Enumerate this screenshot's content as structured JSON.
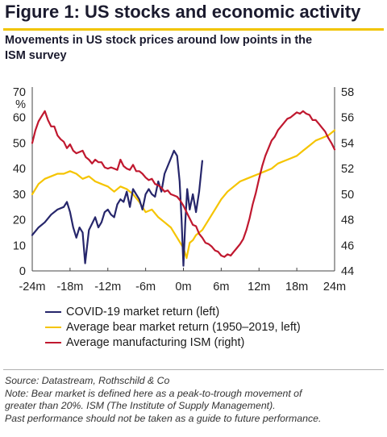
{
  "figure_title": "Figure 1: US stocks and economic activity",
  "subtitle_lines": [
    "Movements in US stock prices around low points in the",
    "ISM survey"
  ],
  "colors": {
    "accent": "#f1c400",
    "covid": "#26266b",
    "bear": "#f5c400",
    "ism": "#c0182f"
  },
  "chart_data": {
    "type": "line",
    "x_ticks": [
      "-24m",
      "-18m",
      "-12m",
      "-6m",
      "0m",
      "6m",
      "12m",
      "18m",
      "24m"
    ],
    "x_range": [
      -24,
      24
    ],
    "y_left_unit": "%",
    "y_left_range": [
      0,
      70
    ],
    "y_left_ticks": [
      "0",
      "10",
      "20",
      "30",
      "40",
      "50",
      "60",
      "70"
    ],
    "y_right_range": [
      44,
      58
    ],
    "y_right_ticks": [
      "44",
      "46",
      "48",
      "50",
      "52",
      "54",
      "56",
      "58"
    ],
    "grid": false,
    "legend_position": "bottom",
    "series": [
      {
        "name": "COVID-19 market return (left)",
        "axis": "left",
        "color": "#26266b",
        "x": [
          -24,
          -23,
          -22,
          -21,
          -20,
          -19,
          -18.5,
          -18,
          -17.5,
          -17,
          -16.5,
          -16,
          -15.6,
          -15,
          -14,
          -13.5,
          -13,
          -12.5,
          -12,
          -11.5,
          -11,
          -10.5,
          -10,
          -9.5,
          -9,
          -8.5,
          -8,
          -7.5,
          -7,
          -6.5,
          -6,
          -5.5,
          -5,
          -4.5,
          -4,
          -3.5,
          -3,
          -2.5,
          -2,
          -1.5,
          -1,
          -0.6,
          -0.3,
          0,
          0.3,
          0.6,
          1,
          1.5,
          2,
          2.5,
          3
        ],
        "values": [
          14,
          17,
          19,
          22,
          24,
          25,
          27,
          23,
          17,
          13,
          17,
          15,
          3,
          16,
          21,
          17,
          19,
          23,
          24,
          22,
          21,
          26,
          28,
          27,
          31,
          25,
          32,
          30,
          28,
          24,
          30,
          32,
          30,
          29,
          35,
          31,
          38,
          41,
          44,
          47,
          45,
          35,
          20,
          2,
          19,
          32,
          24,
          30,
          23,
          31,
          43
        ]
      },
      {
        "name": "Average bear market return (1950–2019, left)",
        "axis": "left",
        "color": "#f5c400",
        "x": [
          -24,
          -23,
          -22,
          -21,
          -20,
          -19,
          -18,
          -17,
          -16,
          -15,
          -14,
          -13,
          -12,
          -11,
          -10,
          -9,
          -8,
          -7,
          -6,
          -5,
          -4,
          -3,
          -2,
          -1,
          0,
          0.5,
          1,
          1.5,
          2,
          3,
          4,
          5,
          6,
          7,
          8,
          9,
          10,
          11,
          12,
          13,
          14,
          15,
          16,
          17,
          18,
          19,
          20,
          21,
          22,
          23,
          24
        ],
        "values": [
          30,
          34,
          36,
          37,
          38,
          38,
          39,
          38,
          36,
          37,
          35,
          34,
          33,
          31,
          33,
          32,
          30,
          27,
          23,
          24,
          21,
          19,
          17,
          13,
          9,
          5,
          11,
          12,
          14,
          16,
          20,
          24,
          28,
          31,
          33,
          35,
          36,
          37,
          38,
          39,
          40,
          42,
          43,
          44,
          45,
          47,
          49,
          51,
          52,
          53,
          55
        ]
      },
      {
        "name": "Average manufacturing ISM (right)",
        "axis": "right",
        "color": "#c0182f",
        "x": [
          -24,
          -23.5,
          -23,
          -22.5,
          -22,
          -21.5,
          -21,
          -20.5,
          -20,
          -19.5,
          -19,
          -18.5,
          -18,
          -17.5,
          -17,
          -16.5,
          -16,
          -15.5,
          -15,
          -14.5,
          -14,
          -13.5,
          -13,
          -12.5,
          -12,
          -11.5,
          -11,
          -10.5,
          -10,
          -9.5,
          -9,
          -8.5,
          -8,
          -7.5,
          -7,
          -6.5,
          -6,
          -5.5,
          -5,
          -4.5,
          -4,
          -3.5,
          -3,
          -2.5,
          -2,
          -1.5,
          -1,
          -0.5,
          0,
          0.5,
          1,
          1.5,
          2,
          2.5,
          3,
          3.5,
          4,
          4.5,
          5,
          5.5,
          6,
          6.5,
          7,
          7.5,
          8,
          8.5,
          9,
          9.5,
          10,
          10.5,
          11,
          11.5,
          12,
          12.5,
          13,
          13.5,
          14,
          14.5,
          15,
          15.5,
          16,
          16.5,
          17,
          17.5,
          18,
          18.5,
          19,
          19.5,
          20,
          20.5,
          21,
          21.5,
          22,
          22.5,
          23,
          23.5,
          24
        ],
        "values": [
          54.0,
          55.0,
          55.7,
          56.1,
          56.5,
          55.8,
          55.3,
          55.3,
          54.6,
          54.3,
          54.1,
          53.6,
          53.9,
          53.4,
          53.2,
          53.3,
          53.4,
          52.9,
          52.7,
          52.4,
          52.7,
          52.5,
          52.5,
          52.1,
          52.0,
          52.1,
          52.0,
          51.9,
          52.7,
          52.2,
          52.0,
          51.9,
          52.3,
          51.8,
          51.8,
          51.6,
          51.3,
          51.1,
          51.2,
          50.8,
          50.7,
          50.5,
          50.2,
          50.3,
          50.0,
          49.9,
          49.8,
          49.5,
          49.1,
          48.6,
          48.1,
          47.6,
          47.5,
          46.9,
          46.6,
          46.2,
          46.1,
          45.9,
          45.6,
          45.5,
          45.2,
          45.1,
          45.3,
          45.2,
          45.5,
          45.8,
          46.1,
          46.5,
          47.2,
          48.1,
          49.2,
          50.1,
          51.2,
          52.2,
          53.0,
          53.6,
          54.2,
          54.5,
          55.0,
          55.3,
          55.6,
          55.9,
          56.0,
          56.2,
          56.4,
          56.3,
          56.5,
          56.3,
          56.2,
          55.8,
          55.8,
          55.5,
          55.2,
          54.9,
          54.4,
          54.0,
          53.5
        ]
      }
    ]
  },
  "source_lines": [
    "Source: Datastream, Rothschild & Co",
    "Note: Bear market is defined here as a peak-to-trough movement of",
    "greater than 20%. ISM (The Institute of Supply Management).",
    "Past performance should not be taken as a guide to future performance."
  ]
}
